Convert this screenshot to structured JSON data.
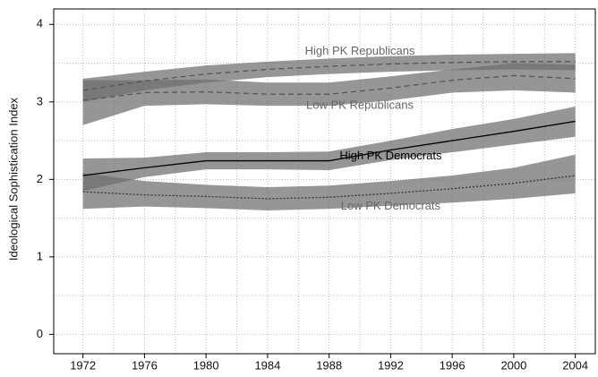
{
  "chart_data": {
    "type": "line",
    "y_label": "Ideological Sophistication Index",
    "x": [
      1972,
      1976,
      1980,
      1984,
      1988,
      1992,
      1996,
      2000,
      2004
    ],
    "xlim": [
      1970.1,
      2005.3
    ],
    "xticks": [
      1972,
      1976,
      1980,
      1984,
      1988,
      1992,
      1996,
      2000,
      2004
    ],
    "xgrid": [
      1972,
      1974,
      1976,
      1978,
      1980,
      1982,
      1984,
      1986,
      1988,
      1990,
      1992,
      1994,
      1996,
      1998,
      2000,
      2002,
      2004
    ],
    "ylim": [
      -0.25,
      4.2
    ],
    "yticks": [
      0,
      1,
      2,
      3,
      4
    ],
    "ygrid": [
      0,
      0.5,
      1,
      1.5,
      2,
      2.5,
      3,
      3.5,
      4
    ],
    "grid": true,
    "series": [
      {
        "name": "High PK Republicans",
        "color": "#555555",
        "dash": "6,4",
        "values": [
          3.15,
          3.27,
          3.36,
          3.42,
          3.46,
          3.49,
          3.51,
          3.52,
          3.52
        ],
        "lower": [
          3.0,
          3.15,
          3.25,
          3.32,
          3.36,
          3.39,
          3.41,
          3.42,
          3.41
        ],
        "upper": [
          3.3,
          3.39,
          3.47,
          3.52,
          3.56,
          3.59,
          3.61,
          3.62,
          3.63
        ]
      },
      {
        "name": "Low PK Republicans",
        "color": "#555555",
        "dash": "6,4",
        "values": [
          3.02,
          3.12,
          3.13,
          3.1,
          3.1,
          3.18,
          3.28,
          3.34,
          3.3
        ],
        "lower": [
          2.7,
          2.95,
          2.97,
          2.95,
          2.95,
          3.02,
          3.12,
          3.15,
          3.12
        ],
        "upper": [
          3.28,
          3.28,
          3.29,
          3.25,
          3.25,
          3.33,
          3.42,
          3.5,
          3.48
        ]
      },
      {
        "name": "High PK Democrats",
        "color": "#000000",
        "dash": "",
        "values": [
          2.05,
          2.15,
          2.24,
          2.24,
          2.24,
          2.38,
          2.5,
          2.62,
          2.75
        ],
        "lower": [
          1.85,
          2.03,
          2.13,
          2.13,
          2.12,
          2.25,
          2.35,
          2.45,
          2.55
        ],
        "upper": [
          2.27,
          2.28,
          2.35,
          2.35,
          2.36,
          2.5,
          2.65,
          2.78,
          2.94
        ]
      },
      {
        "name": "Low PK Democrats",
        "color": "#333333",
        "dash": "2,2",
        "values": [
          1.84,
          1.8,
          1.78,
          1.75,
          1.77,
          1.82,
          1.88,
          1.95,
          2.05
        ],
        "lower": [
          1.62,
          1.65,
          1.63,
          1.6,
          1.62,
          1.66,
          1.7,
          1.75,
          1.82
        ],
        "upper": [
          2.08,
          1.98,
          1.93,
          1.9,
          1.92,
          1.98,
          2.05,
          2.15,
          2.32
        ]
      }
    ]
  }
}
